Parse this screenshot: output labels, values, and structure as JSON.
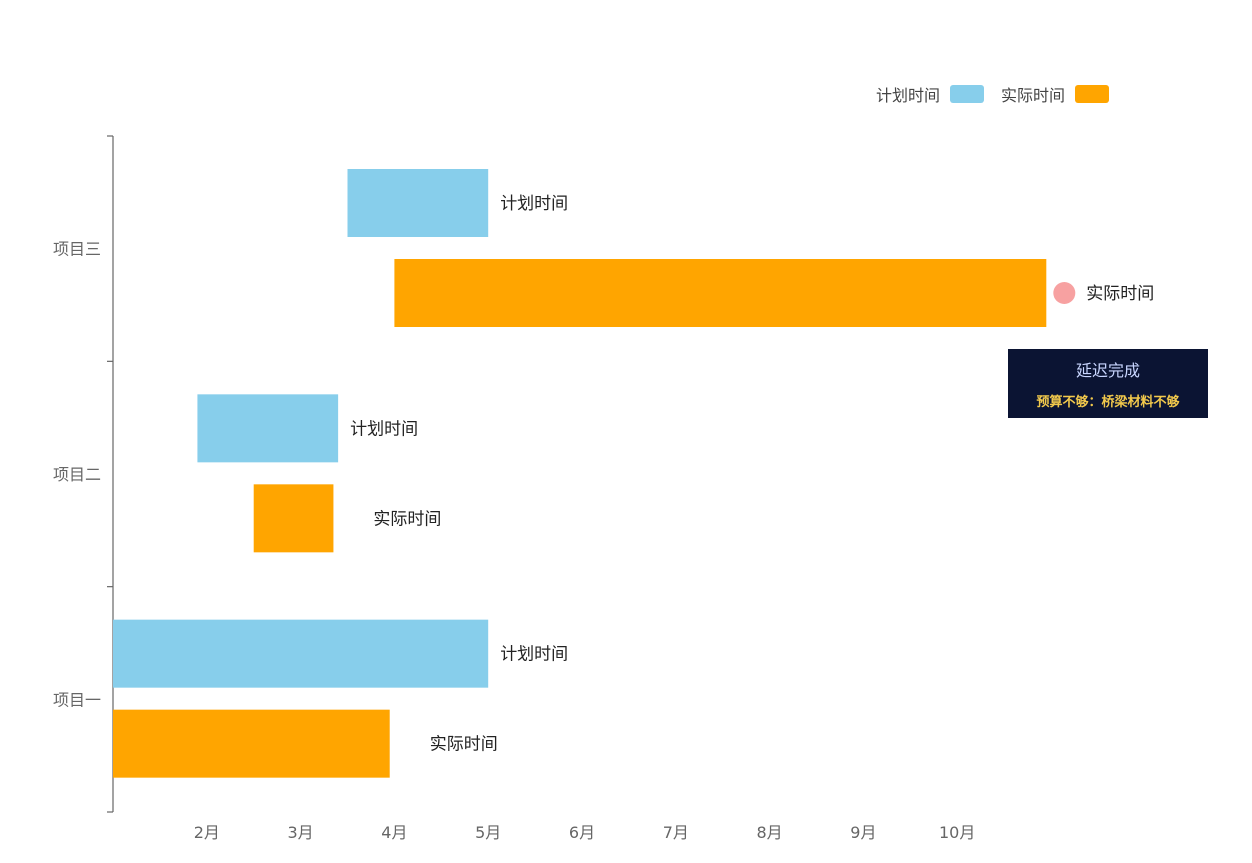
{
  "legend": {
    "items": [
      {
        "label": "计划时间",
        "color": "#87ceeb"
      },
      {
        "label": "实际时间",
        "color": "#ffa500"
      }
    ]
  },
  "tooltip": {
    "title": "延迟完成",
    "note": "预算不够：桥梁材料不够"
  },
  "chart_data": {
    "type": "bar",
    "orientation": "horizontal",
    "categories": [
      "项目一",
      "项目二",
      "项目三"
    ],
    "x_ticks": [
      "2月",
      "3月",
      "4月",
      "5月",
      "6月",
      "7月",
      "8月",
      "9月",
      "10月"
    ],
    "xlim": [
      1.0,
      11.0
    ],
    "series": [
      {
        "name": "计划时间",
        "color": "#87ceeb",
        "ranges": [
          [
            1.0,
            5.0
          ],
          [
            1.9,
            3.4
          ],
          [
            3.5,
            5.0
          ]
        ]
      },
      {
        "name": "实际时间",
        "color": "#ffa500",
        "ranges": [
          [
            1.0,
            3.95
          ],
          [
            2.5,
            3.35
          ],
          [
            4.0,
            10.95
          ]
        ]
      }
    ],
    "bar_labels": [
      [
        "计划时间",
        "实际时间"
      ],
      [
        "计划时间",
        "实际时间"
      ],
      [
        "计划时间",
        "实际时间"
      ]
    ],
    "marker": {
      "category": "项目三",
      "series": "实际时间",
      "color": "#f7a1a1"
    },
    "grid": false,
    "legend_position": "top-right"
  }
}
